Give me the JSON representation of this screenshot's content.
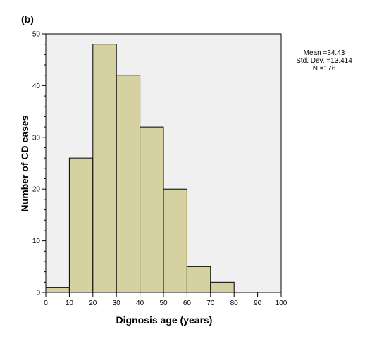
{
  "panel_label": "(b)",
  "stats": {
    "mean": "Mean =34.43",
    "std": "Std. Dev. =13.414",
    "n": "N =176"
  },
  "colors": {
    "plot_background": "#f0f0f0",
    "bar_fill": "#d6d1a0",
    "bar_stroke": "#000000"
  },
  "chart_data": {
    "type": "bar",
    "subtype": "histogram",
    "xlabel": "Dignosis age (years)",
    "ylabel": "Number of CD cases",
    "xlim": [
      0,
      100
    ],
    "ylim": [
      0,
      50
    ],
    "x_ticks": [
      0,
      10,
      20,
      30,
      40,
      50,
      60,
      70,
      80,
      90,
      100
    ],
    "y_ticks": [
      0,
      10,
      20,
      30,
      40,
      50
    ],
    "bin_width": 10,
    "bins": [
      {
        "start": 0,
        "end": 10,
        "value": 1
      },
      {
        "start": 10,
        "end": 20,
        "value": 26
      },
      {
        "start": 20,
        "end": 30,
        "value": 48
      },
      {
        "start": 30,
        "end": 40,
        "value": 42
      },
      {
        "start": 40,
        "end": 50,
        "value": 32
      },
      {
        "start": 50,
        "end": 60,
        "value": 20
      },
      {
        "start": 60,
        "end": 70,
        "value": 5
      },
      {
        "start": 70,
        "end": 80,
        "value": 2
      }
    ],
    "grid": false
  }
}
